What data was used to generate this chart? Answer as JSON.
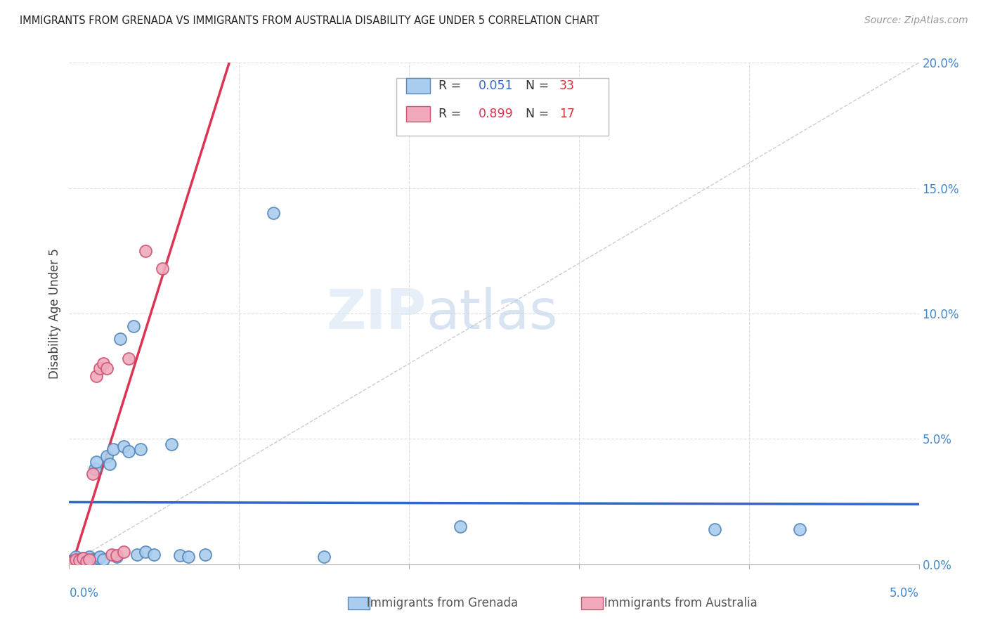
{
  "title": "IMMIGRANTS FROM GRENADA VS IMMIGRANTS FROM AUSTRALIA DISABILITY AGE UNDER 5 CORRELATION CHART",
  "source": "Source: ZipAtlas.com",
  "ylabel": "Disability Age Under 5",
  "watermark_line1": "ZIP",
  "watermark_line2": "atlas",
  "xlim": [
    0.0,
    5.0
  ],
  "ylim": [
    0.0,
    20.0
  ],
  "x_tick_vals": [
    0.0,
    1.0,
    2.0,
    3.0,
    4.0,
    5.0
  ],
  "y_tick_vals": [
    0.0,
    5.0,
    10.0,
    15.0,
    20.0
  ],
  "grenada_color": "#aaccee",
  "grenada_edge": "#5588bb",
  "australia_color": "#f0aabb",
  "australia_edge": "#cc5577",
  "grenada_trend_color": "#3366cc",
  "australia_trend_color": "#dd3355",
  "diagonal_color": "#cccccc",
  "grid_color": "#dddddd",
  "grenada_points": [
    [
      0.02,
      0.15
    ],
    [
      0.04,
      0.3
    ],
    [
      0.06,
      0.2
    ],
    [
      0.08,
      0.25
    ],
    [
      0.1,
      0.1
    ],
    [
      0.12,
      0.3
    ],
    [
      0.14,
      0.2
    ],
    [
      0.15,
      3.8
    ],
    [
      0.16,
      4.1
    ],
    [
      0.17,
      0.25
    ],
    [
      0.18,
      0.3
    ],
    [
      0.2,
      0.2
    ],
    [
      0.22,
      4.3
    ],
    [
      0.24,
      4.0
    ],
    [
      0.26,
      4.6
    ],
    [
      0.28,
      0.3
    ],
    [
      0.3,
      9.0
    ],
    [
      0.32,
      4.7
    ],
    [
      0.35,
      4.5
    ],
    [
      0.38,
      9.5
    ],
    [
      0.4,
      0.4
    ],
    [
      0.42,
      4.6
    ],
    [
      0.45,
      0.5
    ],
    [
      0.5,
      0.4
    ],
    [
      0.6,
      4.8
    ],
    [
      0.65,
      0.35
    ],
    [
      0.7,
      0.3
    ],
    [
      0.8,
      0.4
    ],
    [
      1.2,
      14.0
    ],
    [
      1.5,
      0.3
    ],
    [
      2.3,
      1.5
    ],
    [
      3.8,
      1.4
    ],
    [
      4.3,
      1.4
    ]
  ],
  "australia_points": [
    [
      0.02,
      0.1
    ],
    [
      0.04,
      0.2
    ],
    [
      0.06,
      0.15
    ],
    [
      0.08,
      0.25
    ],
    [
      0.1,
      0.1
    ],
    [
      0.12,
      0.2
    ],
    [
      0.14,
      3.6
    ],
    [
      0.16,
      7.5
    ],
    [
      0.18,
      7.8
    ],
    [
      0.2,
      8.0
    ],
    [
      0.22,
      7.8
    ],
    [
      0.25,
      0.4
    ],
    [
      0.28,
      0.35
    ],
    [
      0.32,
      0.5
    ],
    [
      0.35,
      8.2
    ],
    [
      0.45,
      12.5
    ],
    [
      0.55,
      11.8
    ]
  ],
  "bottom_legend_grenada": "Immigrants from Grenada",
  "bottom_legend_australia": "Immigrants from Australia",
  "legend_r1": "R = 0.051",
  "legend_n1": "N = 33",
  "legend_r2": "R = 0.899",
  "legend_n2": "N = 17",
  "legend_r_color1": "#3366cc",
  "legend_n_color1": "#dd3333",
  "legend_r_color2": "#dd3355",
  "legend_n_color2": "#dd3333"
}
